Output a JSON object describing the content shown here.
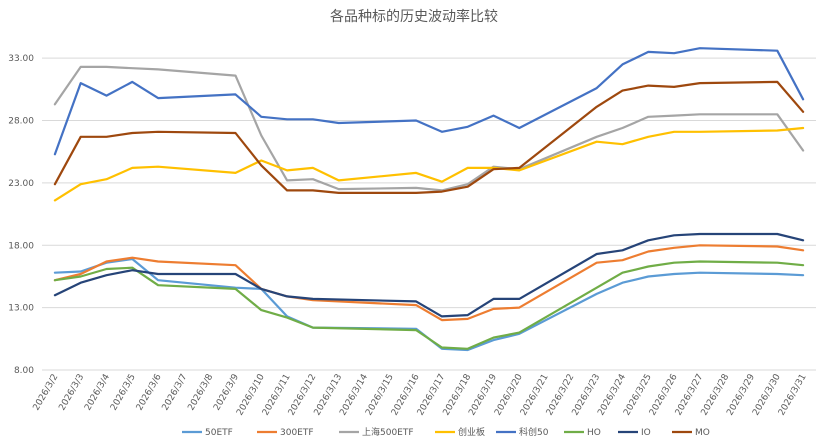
{
  "chart_data": {
    "type": "line",
    "title": "各品种标的历史波动率比较",
    "xlabel": "",
    "ylabel": "",
    "ylim": [
      8,
      35.5
    ],
    "yticks": [
      "8.00",
      "13.00",
      "18.00",
      "23.00",
      "28.00",
      "33.00"
    ],
    "grid": true,
    "legend_position": "bottom",
    "x": [
      "2026/3/2",
      "2026/3/3",
      "2026/3/4",
      "2026/3/5",
      "2026/3/6",
      "2026/3/7",
      "2026/3/8",
      "2026/3/9",
      "2026/3/10",
      "2026/3/11",
      "2026/3/12",
      "2026/3/13",
      "2026/3/14",
      "2026/3/15",
      "2026/3/16",
      "2026/3/17",
      "2026/3/18",
      "2026/3/19",
      "2026/3/20",
      "2026/3/21",
      "2026/3/22",
      "2026/3/23",
      "2026/3/24",
      "2026/3/25",
      "2026/3/26",
      "2026/3/27",
      "2026/3/28",
      "2026/3/29",
      "2026/3/30",
      "2026/3/31"
    ],
    "series": [
      {
        "name": "50ETF",
        "color": "#5b9bd5",
        "values": [
          15.8,
          15.9,
          16.6,
          16.9,
          15.2,
          null,
          null,
          14.6,
          14.5,
          12.3,
          11.4,
          null,
          null,
          null,
          11.3,
          9.7,
          9.6,
          10.4,
          10.9,
          null,
          null,
          14.1,
          15.0,
          15.5,
          15.7,
          15.8,
          null,
          null,
          15.7,
          15.6
        ]
      },
      {
        "name": "300ETF",
        "color": "#ed7d31",
        "values": [
          15.2,
          15.7,
          16.7,
          17.0,
          16.7,
          null,
          null,
          16.4,
          14.5,
          13.9,
          13.6,
          null,
          null,
          null,
          13.2,
          12.0,
          12.1,
          12.9,
          13.0,
          null,
          null,
          16.6,
          16.8,
          17.5,
          17.8,
          18.0,
          null,
          null,
          17.9,
          17.6
        ]
      },
      {
        "name": "上海500ETF",
        "color": "#a5a5a5",
        "values": [
          29.3,
          32.3,
          32.3,
          32.2,
          32.1,
          null,
          null,
          31.6,
          26.8,
          23.2,
          23.3,
          22.5,
          null,
          null,
          22.6,
          22.4,
          22.9,
          24.3,
          24.1,
          null,
          null,
          26.7,
          27.4,
          28.3,
          28.4,
          28.5,
          null,
          null,
          28.5,
          25.6
        ]
      },
      {
        "name": "创业板",
        "color": "#ffc000",
        "values": [
          21.6,
          22.9,
          23.3,
          24.2,
          24.3,
          null,
          null,
          23.8,
          24.8,
          24.0,
          24.2,
          23.2,
          null,
          null,
          23.8,
          23.1,
          24.2,
          24.2,
          24.0,
          null,
          null,
          26.3,
          26.1,
          26.7,
          27.1,
          27.1,
          null,
          null,
          27.2,
          27.4
        ]
      },
      {
        "name": "科创50",
        "color": "#4472c4",
        "values": [
          25.3,
          31.0,
          30.0,
          31.1,
          29.8,
          null,
          null,
          30.1,
          28.3,
          28.1,
          28.1,
          27.8,
          null,
          null,
          28.0,
          27.1,
          27.5,
          28.4,
          27.4,
          null,
          null,
          30.6,
          32.5,
          33.5,
          33.4,
          33.8,
          null,
          null,
          33.6,
          29.7
        ]
      },
      {
        "name": "HO",
        "color": "#70ad47",
        "values": [
          15.2,
          15.5,
          16.1,
          16.2,
          14.8,
          null,
          null,
          14.5,
          12.8,
          12.2,
          11.4,
          null,
          null,
          null,
          11.2,
          9.8,
          9.7,
          10.6,
          11.0,
          null,
          null,
          14.6,
          15.8,
          16.3,
          16.6,
          16.7,
          null,
          null,
          16.6,
          16.4
        ]
      },
      {
        "name": "IO",
        "color": "#264478",
        "values": [
          14.0,
          15.0,
          15.6,
          16.0,
          15.7,
          null,
          null,
          15.7,
          14.5,
          13.9,
          13.7,
          null,
          null,
          null,
          13.5,
          12.3,
          12.4,
          13.7,
          13.7,
          null,
          null,
          17.3,
          17.6,
          18.4,
          18.8,
          18.9,
          null,
          null,
          18.9,
          18.4
        ]
      },
      {
        "name": "MO",
        "color": "#9e480e",
        "values": [
          22.9,
          26.7,
          26.7,
          27.0,
          27.1,
          null,
          null,
          27.0,
          24.4,
          22.4,
          22.4,
          22.2,
          null,
          null,
          22.2,
          22.3,
          22.7,
          24.1,
          24.2,
          null,
          null,
          29.1,
          30.4,
          30.8,
          30.7,
          31.0,
          null,
          null,
          31.1,
          28.7
        ]
      }
    ]
  }
}
